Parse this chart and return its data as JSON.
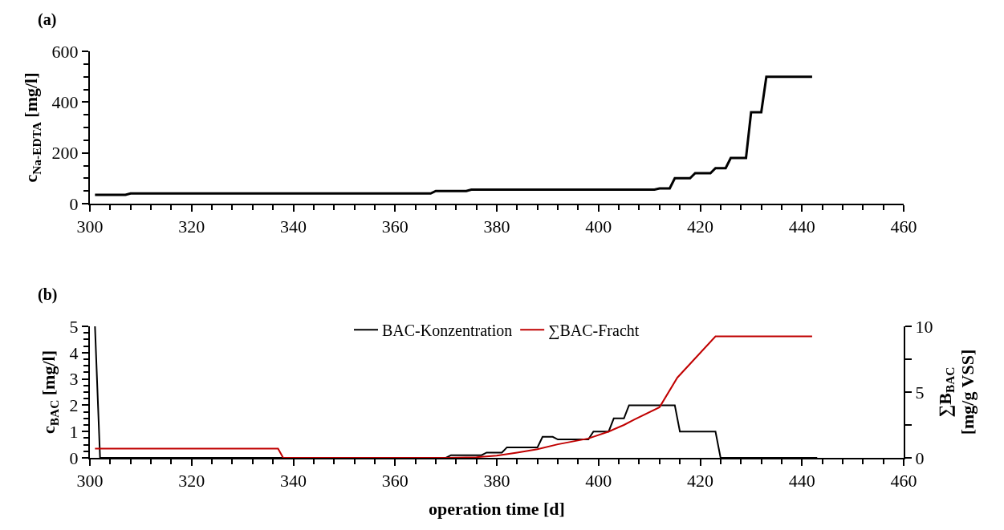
{
  "chart_data": [
    {
      "type": "line",
      "title": "(a)",
      "ylabel": "c$_{Na-EDTA}$ [mg/l]",
      "xlim": [
        300,
        460
      ],
      "xticks": [
        300,
        320,
        340,
        360,
        380,
        400,
        420,
        440,
        460
      ],
      "ylim": [
        0,
        600
      ],
      "yticks": [
        0,
        200,
        400,
        600
      ],
      "legend": false,
      "marker": "none",
      "line_style": "solid",
      "series": [
        {
          "color": "#000000",
          "x": [
            301,
            307,
            308,
            367,
            368,
            374,
            375,
            411,
            412,
            414,
            415,
            418,
            419,
            422,
            423,
            425,
            426,
            429,
            430,
            432,
            433,
            442
          ],
          "values": [
            35,
            35,
            40,
            40,
            50,
            50,
            55,
            55,
            60,
            60,
            100,
            100,
            120,
            120,
            140,
            140,
            180,
            180,
            360,
            360,
            500,
            500
          ]
        }
      ]
    },
    {
      "type": "line",
      "title": "(b)",
      "xlabel": "operation time [d]",
      "ylabel": "c$_{BAC}$ [mg/l]",
      "y2label": "∑B$_{BAC}$\n[mg/g VSS]",
      "xlim": [
        300,
        460
      ],
      "xticks": [
        300,
        320,
        340,
        360,
        380,
        400,
        420,
        440,
        460
      ],
      "ylim": [
        0,
        5
      ],
      "yticks": [
        0,
        1,
        2,
        3,
        4,
        5
      ],
      "y2lim": [
        0,
        10
      ],
      "y2ticks": [
        0,
        5,
        10
      ],
      "legend": "top",
      "marker": "none",
      "line_style": "solid",
      "series": [
        {
          "name": "BAC-Konzentration",
          "color": "#000000",
          "x": [
            301,
            302,
            370,
            371,
            377,
            378,
            381,
            382,
            388,
            389,
            391,
            392,
            398,
            399,
            402,
            403,
            405,
            406,
            415,
            416,
            423,
            424,
            443
          ],
          "values": [
            5,
            0,
            0,
            0.1,
            0.1,
            0.2,
            0.2,
            0.4,
            0.4,
            0.8,
            0.8,
            0.7,
            0.7,
            1.0,
            1.0,
            1.5,
            1.5,
            2.0,
            2.0,
            1.0,
            1.0,
            0,
            0
          ]
        },
        {
          "name": "∑BAC-Fracht",
          "color": "#c00000",
          "axis": "y2",
          "x": [
            301,
            337,
            338,
            370,
            376,
            380,
            384,
            388,
            392,
            398,
            402,
            405,
            407,
            412,
            415.5,
            423,
            442
          ],
          "values": [
            0.7,
            0.7,
            0,
            0,
            0.05,
            0.17,
            0.4,
            0.66,
            1.03,
            1.47,
            2.0,
            2.5,
            2.9,
            3.85,
            6.1,
            9.24,
            9.24
          ]
        }
      ]
    }
  ]
}
